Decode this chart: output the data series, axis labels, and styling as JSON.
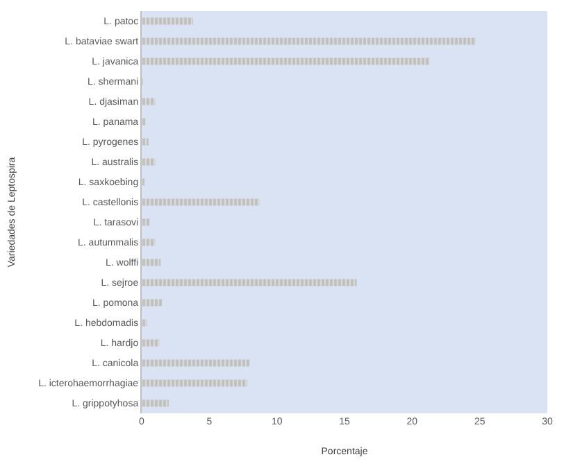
{
  "chart_data": {
    "type": "bar",
    "orientation": "horizontal",
    "xlabel": "Porcentaje",
    "ylabel": "Variedades de Leptospira",
    "categories": [
      "L. patoc",
      "L. bataviae swart",
      "L. javanica",
      "L. shermani",
      "L. djasiman",
      "L. panama",
      "L. pyrogenes",
      "L. australis",
      "L. saxkoebing",
      "L. castellonis",
      "L. tarasovi",
      "L. autummalis",
      "L. wolffi",
      "L. sejroe",
      "L. pomona",
      "L. hebdomadis",
      "L. hardjo",
      "L. canicola",
      "L. icterohaemorrhagiae",
      "L. grippotyhosa"
    ],
    "values": [
      3.8,
      24.7,
      21.3,
      0.1,
      1.0,
      0.3,
      0.5,
      1.0,
      0.2,
      8.7,
      0.6,
      1.0,
      1.4,
      15.9,
      1.5,
      0.4,
      1.3,
      8.0,
      7.8,
      2.0
    ],
    "color": "#a6a6a6",
    "xlim": [
      0,
      30
    ],
    "xticks": [
      0,
      5,
      10,
      15,
      20,
      25,
      30
    ],
    "grid": false
  }
}
